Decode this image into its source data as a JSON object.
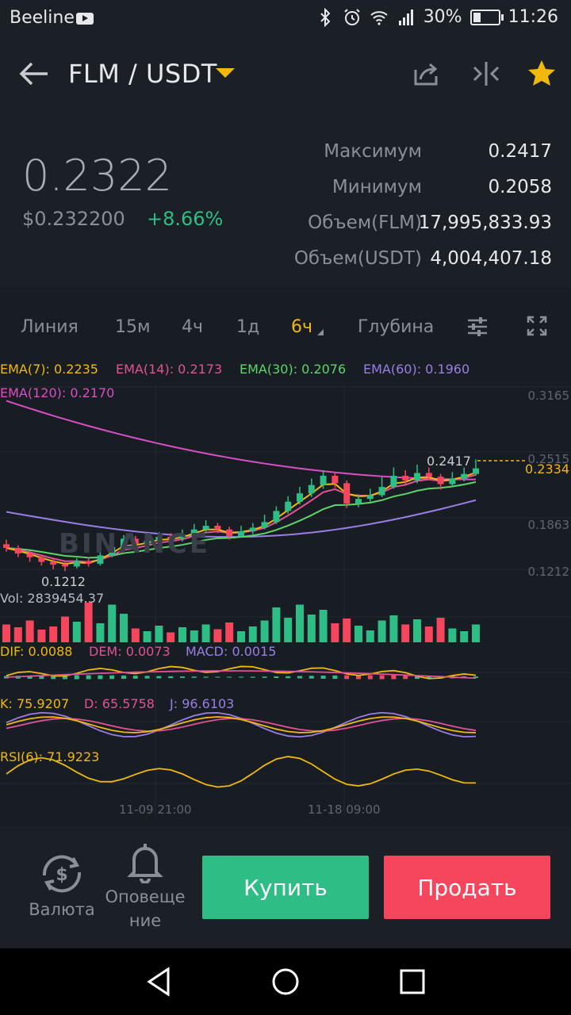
{
  "status_bar": {
    "carrier": "Beeline",
    "battery_pct": "30%",
    "battery_level": 0.3,
    "time": "11:26"
  },
  "header": {
    "pair": "FLM / USDT"
  },
  "ticker": {
    "last_price": "0.2322",
    "fiat_price": "$0.232200",
    "change_pct": "+8.66%",
    "stats": [
      {
        "label": "Максимум",
        "value": "0.2417"
      },
      {
        "label": "Минимум",
        "value": "0.2058"
      },
      {
        "label": "Объем(FLM)",
        "value": "17,995,833.93"
      },
      {
        "label": "Объем(USDT)",
        "value": "4,004,407.18"
      }
    ]
  },
  "tabs": [
    {
      "label": "Линия"
    },
    {
      "label": "15м"
    },
    {
      "label": "4ч"
    },
    {
      "label": "1д"
    },
    {
      "label": "6ч"
    },
    {
      "label": "Глубина"
    }
  ],
  "indicators": {
    "ema7": "EMA(7): 0.2235",
    "ema14": "EMA(14): 0.2173",
    "ema30": "EMA(30): 0.2076",
    "ema60": "EMA(60): 0.1960",
    "ema120": "EMA(120): 0.2170",
    "vol": "Vol: 2839454.37",
    "dif": "DIF: 0.0088",
    "dem": "DEM: 0.0073",
    "macd": "MACD: 0.0015",
    "k": "K: 75.9207",
    "d": "D: 65.5758",
    "j": "J: 96.6103",
    "rsi": "RSI(6): 71.9223"
  },
  "chart": {
    "y_axis": [
      "0.3165",
      "0.2515",
      "0.1863",
      "0.1212"
    ],
    "current_price_label": "0.2334",
    "high_label": "0.2417",
    "low_label": "0.1212",
    "watermark": "BINANCE",
    "x_axis": [
      "11-09 21:00",
      "11-18 09:00"
    ],
    "colors": {
      "up": "#2ebd85",
      "down": "#f6465d",
      "ema7": "#f0b90b",
      "ema14": "#e05297",
      "ema30": "#5ed36a",
      "ema60": "#9a7ee6",
      "ema120": "#d84fc4"
    }
  },
  "chart_data": {
    "type": "candlestick",
    "y_range": [
      0.1212,
      0.3165
    ],
    "candles": [
      [
        0.15,
        0.146,
        0.155,
        0.142
      ],
      [
        0.146,
        0.14,
        0.149,
        0.136
      ],
      [
        0.14,
        0.136,
        0.143,
        0.131
      ],
      [
        0.136,
        0.131,
        0.139,
        0.127
      ],
      [
        0.131,
        0.128,
        0.134,
        0.123
      ],
      [
        0.128,
        0.126,
        0.131,
        0.121
      ],
      [
        0.126,
        0.132,
        0.135,
        0.124
      ],
      [
        0.132,
        0.129,
        0.136,
        0.126
      ],
      [
        0.129,
        0.138,
        0.142,
        0.127
      ],
      [
        0.138,
        0.147,
        0.15,
        0.136
      ],
      [
        0.147,
        0.156,
        0.16,
        0.145
      ],
      [
        0.156,
        0.15,
        0.159,
        0.146
      ],
      [
        0.15,
        0.154,
        0.158,
        0.146
      ],
      [
        0.154,
        0.158,
        0.163,
        0.151
      ],
      [
        0.158,
        0.156,
        0.162,
        0.153
      ],
      [
        0.156,
        0.16,
        0.166,
        0.153
      ],
      [
        0.16,
        0.166,
        0.172,
        0.158
      ],
      [
        0.166,
        0.17,
        0.176,
        0.163
      ],
      [
        0.17,
        0.166,
        0.173,
        0.162
      ],
      [
        0.166,
        0.159,
        0.169,
        0.155
      ],
      [
        0.159,
        0.164,
        0.17,
        0.157
      ],
      [
        0.164,
        0.168,
        0.173,
        0.161
      ],
      [
        0.168,
        0.174,
        0.182,
        0.166
      ],
      [
        0.174,
        0.186,
        0.191,
        0.172
      ],
      [
        0.186,
        0.196,
        0.202,
        0.183
      ],
      [
        0.196,
        0.205,
        0.212,
        0.193
      ],
      [
        0.205,
        0.214,
        0.221,
        0.201
      ],
      [
        0.214,
        0.224,
        0.23,
        0.21
      ],
      [
        0.224,
        0.216,
        0.228,
        0.211
      ],
      [
        0.216,
        0.194,
        0.219,
        0.189
      ],
      [
        0.194,
        0.199,
        0.204,
        0.19
      ],
      [
        0.199,
        0.203,
        0.21,
        0.196
      ],
      [
        0.203,
        0.212,
        0.223,
        0.201
      ],
      [
        0.212,
        0.224,
        0.233,
        0.21
      ],
      [
        0.224,
        0.219,
        0.23,
        0.215
      ],
      [
        0.219,
        0.227,
        0.236,
        0.216
      ],
      [
        0.227,
        0.223,
        0.233,
        0.219
      ],
      [
        0.223,
        0.215,
        0.226,
        0.209
      ],
      [
        0.215,
        0.221,
        0.228,
        0.212
      ],
      [
        0.221,
        0.226,
        0.233,
        0.218
      ],
      [
        0.226,
        0.232,
        0.2417,
        0.224
      ]
    ],
    "volume": [
      0.45,
      0.38,
      0.55,
      0.32,
      0.4,
      0.65,
      0.52,
      1.0,
      0.48,
      0.95,
      0.72,
      0.35,
      0.28,
      0.42,
      0.25,
      0.38,
      0.3,
      0.45,
      0.33,
      0.5,
      0.28,
      0.4,
      0.55,
      0.88,
      0.62,
      0.95,
      0.7,
      0.82,
      0.48,
      0.6,
      0.42,
      0.3,
      0.55,
      0.68,
      0.45,
      0.58,
      0.4,
      0.62,
      0.35,
      0.28,
      0.45
    ]
  },
  "bottom": {
    "currency": "Валюта",
    "alerts_line1": "Оповеще",
    "alerts_line2": "ние",
    "buy": "Купить",
    "sell": "Продать"
  }
}
